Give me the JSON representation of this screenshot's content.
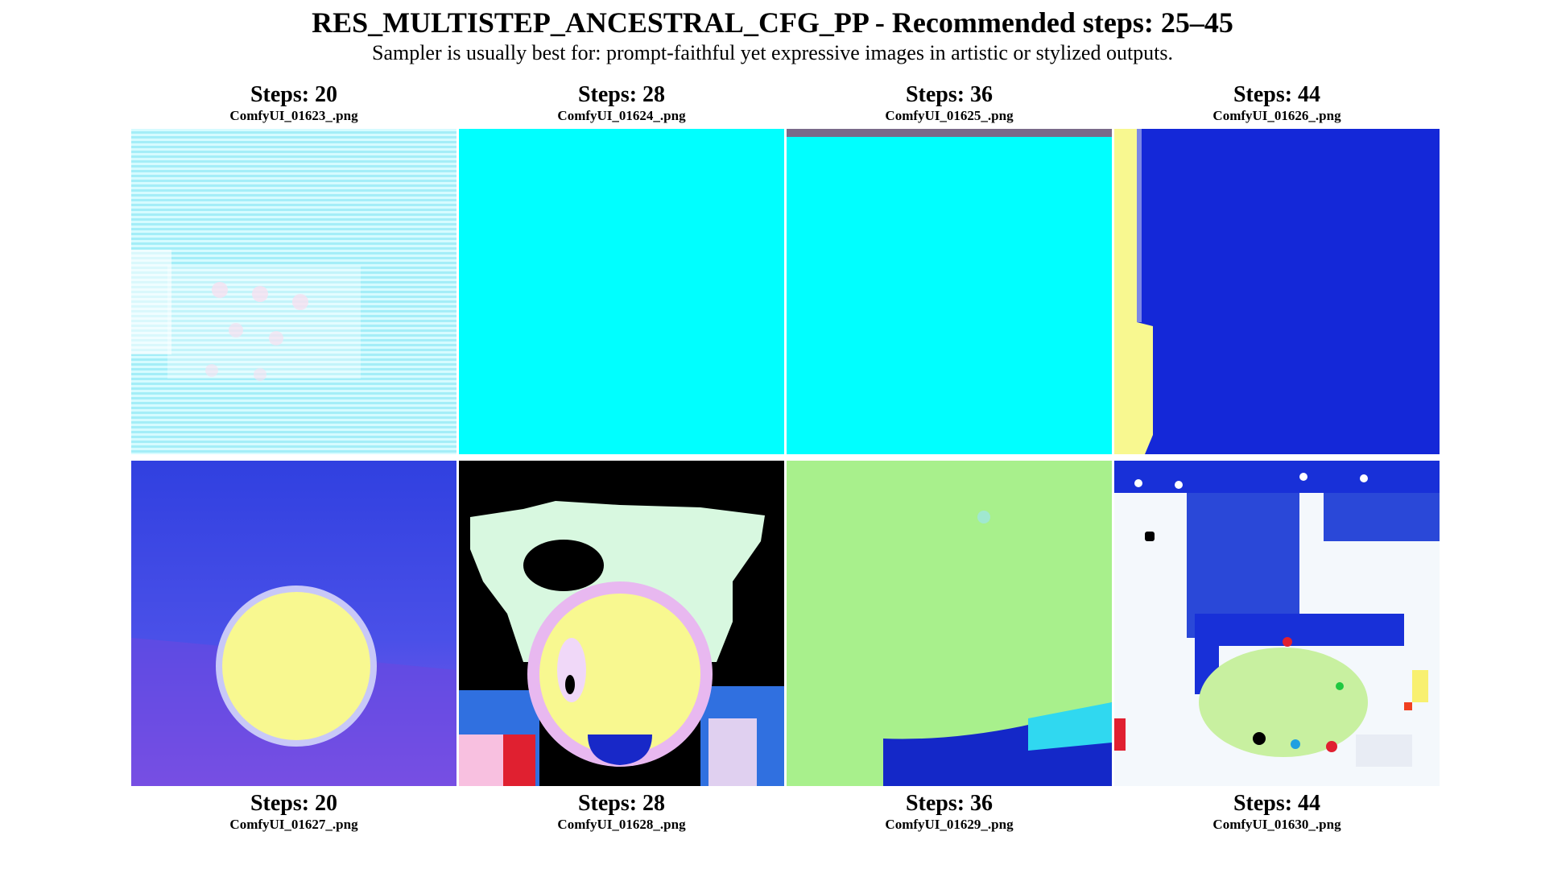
{
  "title": "RES_MULTISTEP_ANCESTRAL_CFG_PP - Recommended steps: 25–45",
  "subtitle": "Sampler is usually best for: prompt-faithful yet expressive images in artistic or stylized outputs.",
  "rows": [
    {
      "cells": [
        {
          "steps": "Steps: 20",
          "file": "ComfyUI_01623_.png"
        },
        {
          "steps": "Steps: 28",
          "file": "ComfyUI_01624_.png"
        },
        {
          "steps": "Steps: 36",
          "file": "ComfyUI_01625_.png"
        },
        {
          "steps": "Steps: 44",
          "file": "ComfyUI_01626_.png"
        }
      ]
    },
    {
      "cells": [
        {
          "steps": "Steps: 20",
          "file": "ComfyUI_01627_.png"
        },
        {
          "steps": "Steps: 28",
          "file": "ComfyUI_01628_.png"
        },
        {
          "steps": "Steps: 36",
          "file": "ComfyUI_01629_.png"
        },
        {
          "steps": "Steps: 44",
          "file": "ComfyUI_01630_.png"
        }
      ]
    }
  ],
  "colors": {
    "cyan": "#00ffff",
    "pale_cyan": "#c8f8fc",
    "deep_blue": "#1428d8",
    "violet_blue": "#4a48e0",
    "yellow": "#f8f890",
    "mint": "#d8f8e0",
    "lime": "#a8f08c",
    "black": "#000000"
  }
}
